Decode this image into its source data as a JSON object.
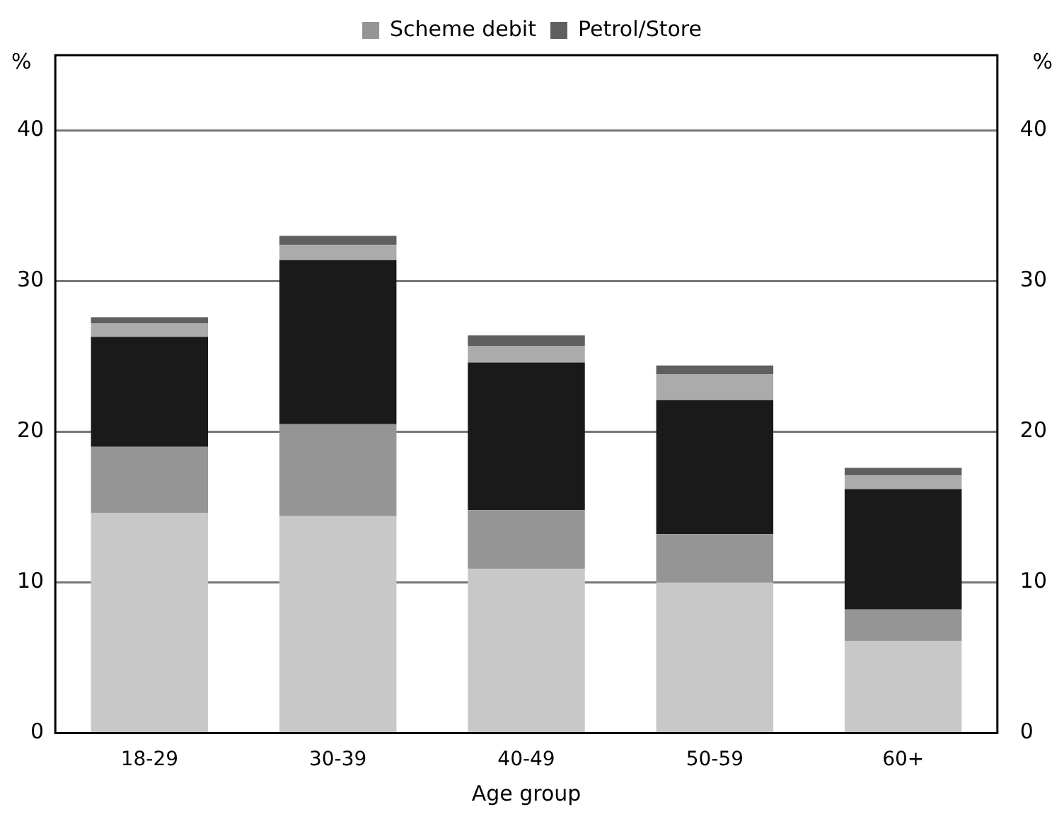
{
  "chart_data": {
    "type": "bar",
    "stacked": true,
    "xlabel": "Age group",
    "ylabel": "%",
    "y2label": "%",
    "categories": [
      "18-29",
      "30-39",
      "40-49",
      "50-59",
      "60+"
    ],
    "series": [
      {
        "color": "#c8c8c8",
        "values": [
          14.6,
          14.4,
          10.9,
          10.0,
          6.1
        ]
      },
      {
        "name": "Scheme debit",
        "color": "#959595",
        "values": [
          4.4,
          6.1,
          3.9,
          3.2,
          2.1
        ]
      },
      {
        "color": "#1a1a1a",
        "values": [
          7.3,
          10.9,
          9.8,
          8.9,
          8.0
        ]
      },
      {
        "color": "#ababab",
        "values": [
          0.9,
          1.0,
          1.1,
          1.7,
          0.9
        ]
      },
      {
        "name": "Petrol/Store",
        "color": "#5f5f5f",
        "values": [
          0.4,
          0.6,
          0.7,
          0.6,
          0.5
        ]
      }
    ],
    "ylim": [
      0,
      45
    ],
    "yticks": [
      0,
      10,
      20,
      30,
      40
    ],
    "y2lim": [
      0,
      45
    ],
    "y2ticks": [
      0,
      10,
      20,
      30,
      40
    ],
    "grid": "y",
    "legend": "top"
  }
}
